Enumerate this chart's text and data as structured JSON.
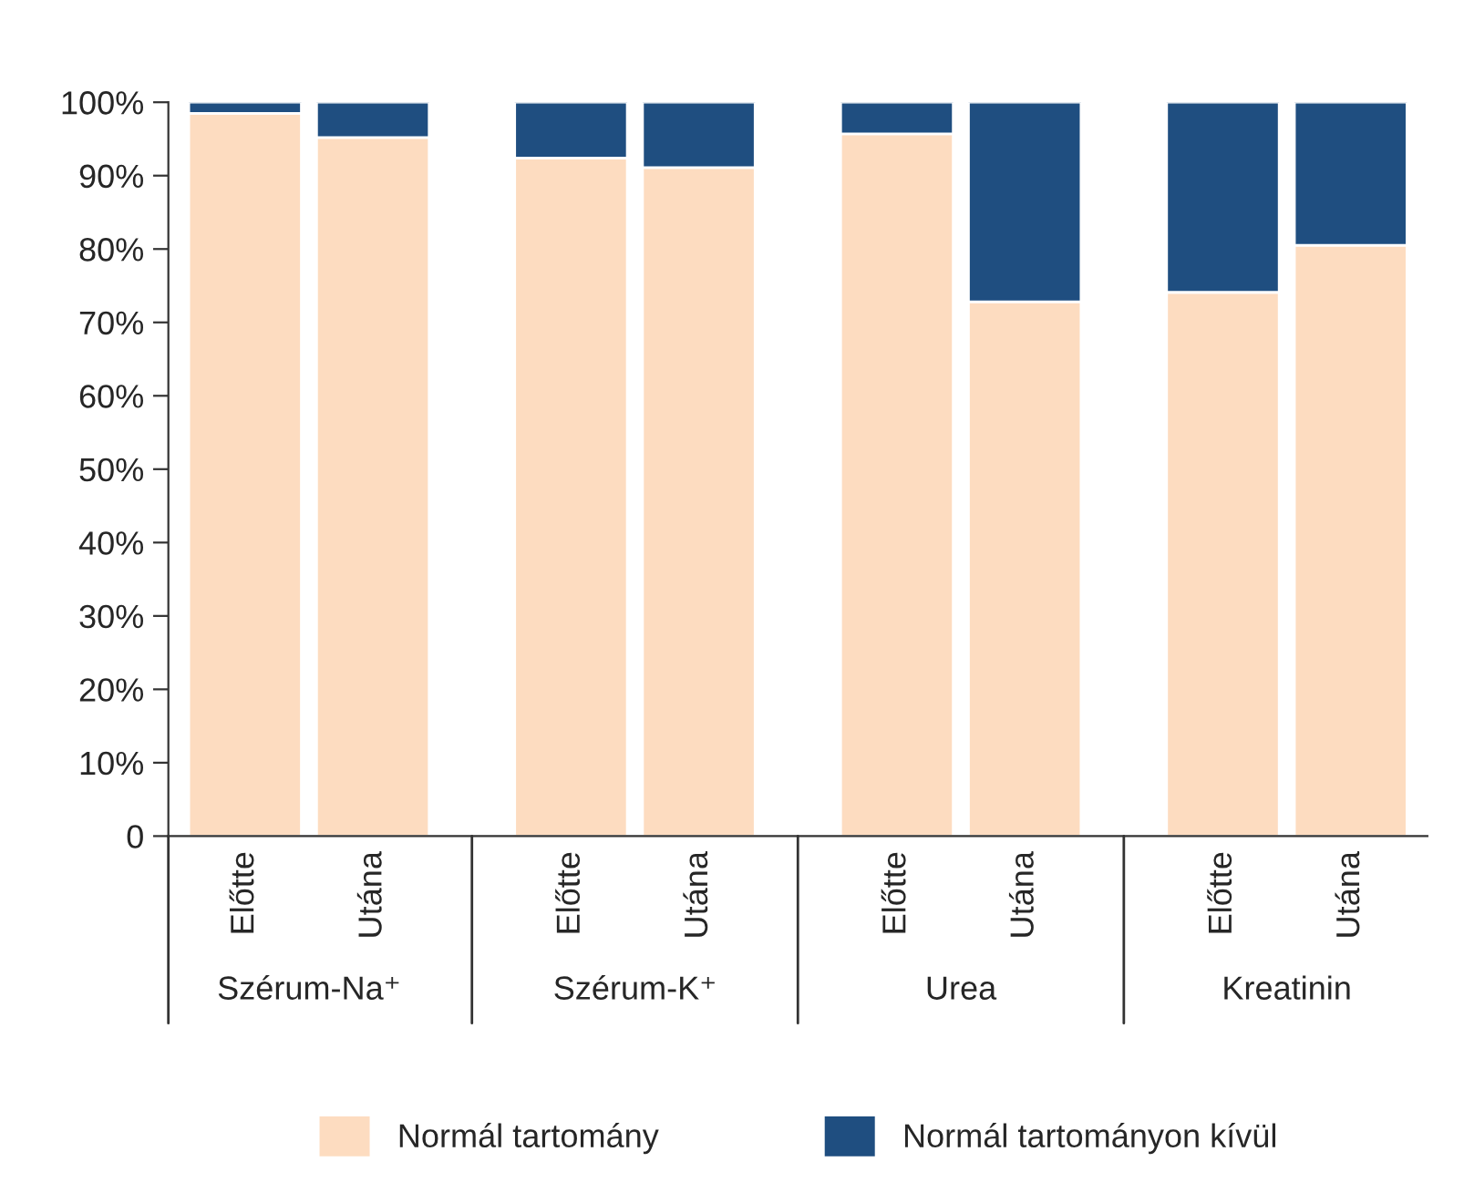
{
  "chart_data": {
    "type": "bar",
    "stacked": true,
    "categories": [
      "Előtte",
      "Utána",
      "Előtte",
      "Utána",
      "Előtte",
      "Utána",
      "Előtte",
      "Utána"
    ],
    "annotations": [
      "Szérum-Na⁺",
      "Szérum-K⁺",
      "Urea",
      "Kreatinin"
    ],
    "series": [
      {
        "name": "Normál tartomány",
        "color": "#fddcc0",
        "values": [
          98.5,
          95.2,
          92.4,
          91.1,
          95.7,
          72.8,
          74.1,
          80.5
        ]
      },
      {
        "name": "Normál tartományon kívül",
        "color": "#1f4e80",
        "values": [
          1.5,
          4.8,
          7.6,
          8.9,
          4.3,
          27.2,
          25.9,
          19.5
        ]
      }
    ],
    "ylim": [
      0,
      100
    ],
    "yticks": [
      {
        "value": 0,
        "label": "0"
      },
      {
        "value": 10,
        "label": "10%"
      },
      {
        "value": 20,
        "label": "20%"
      },
      {
        "value": 30,
        "label": "30%"
      },
      {
        "value": 40,
        "label": "40%"
      },
      {
        "value": 50,
        "label": "50%"
      },
      {
        "value": 60,
        "label": "60%"
      },
      {
        "value": 70,
        "label": "70%"
      },
      {
        "value": 80,
        "label": "80%"
      },
      {
        "value": 90,
        "label": "90%"
      },
      {
        "value": 100,
        "label": "100%"
      }
    ],
    "grid": false,
    "legend": "bottom"
  }
}
